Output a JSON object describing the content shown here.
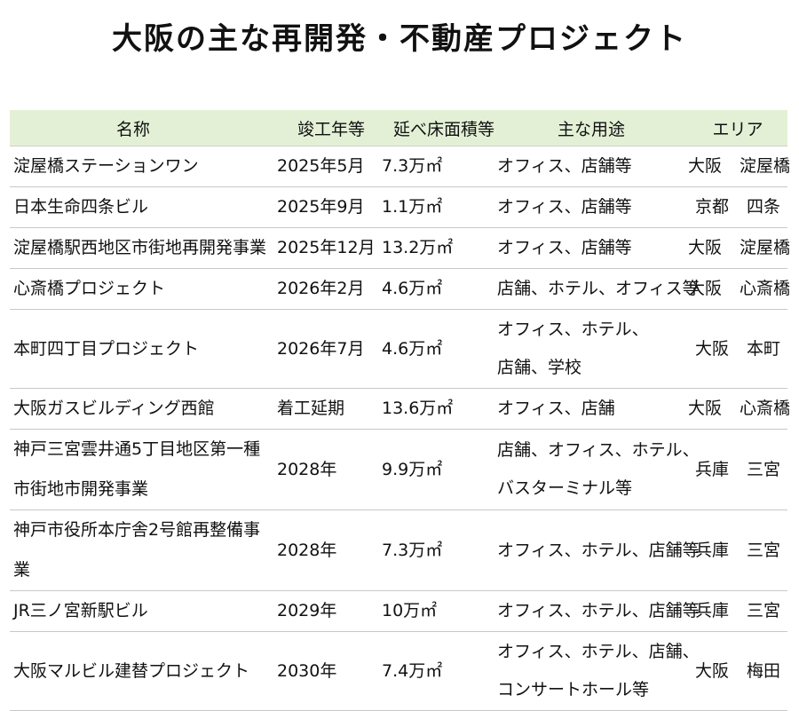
{
  "title": "大阪の主な再開発・不動産プロジェクト",
  "table": {
    "headers": [
      "名称",
      "竣工年等",
      "延べ床面積等",
      "主な用途",
      "エリア"
    ],
    "rows": [
      {
        "name": "淀屋橋ステーションワン",
        "year": "2025年5月",
        "floor_area": "7.3万㎡",
        "uses": [
          "オフィス、店舗等"
        ],
        "city": "大阪",
        "district": "淀屋橋"
      },
      {
        "name": "日本生命四条ビル",
        "year": "2025年9月",
        "floor_area": "1.1万㎡",
        "uses": [
          "オフィス、店舗等"
        ],
        "city": "京都",
        "district": "四条"
      },
      {
        "name": "淀屋橋駅西地区市街地再開発事業",
        "year": "2025年12月",
        "floor_area": "13.2万㎡",
        "uses": [
          "オフィス、店舗等"
        ],
        "city": "大阪",
        "district": "淀屋橋"
      },
      {
        "name": "心斎橋プロジェクト",
        "year": "2026年2月",
        "floor_area": "4.6万㎡",
        "uses": [
          "店舗、ホテル、オフィス等"
        ],
        "city": "大阪",
        "district": "心斎橋"
      },
      {
        "name": "本町四丁目プロジェクト",
        "year": "2026年7月",
        "floor_area": "4.6万㎡",
        "uses": [
          "オフィス、ホテル、",
          "店舗、学校"
        ],
        "city": "大阪",
        "district": "本町"
      },
      {
        "name": "大阪ガスビルディング西館",
        "year": "着工延期",
        "floor_area": "13.6万㎡",
        "uses": [
          "オフィス、店舗"
        ],
        "city": "大阪",
        "district": "心斎橋"
      },
      {
        "name": "神戸三宮雲井通5丁目地区第一種市街地市開発事業",
        "year": "2028年",
        "floor_area": "9.9万㎡",
        "uses": [
          "店舗、オフィス、ホテル、",
          "バスターミナル等"
        ],
        "city": "兵庫",
        "district": "三宮"
      },
      {
        "name": "神戸市役所本庁舎2号館再整備事業",
        "year": "2028年",
        "floor_area": "7.3万㎡",
        "uses": [
          "オフィス、ホテル、店舗等"
        ],
        "city": "兵庫",
        "district": "三宮"
      },
      {
        "name": "JR三ノ宮新駅ビル",
        "year": "2029年",
        "floor_area": "10万㎡",
        "uses": [
          "オフィス、ホテル、店舗等"
        ],
        "city": "兵庫",
        "district": "三宮"
      },
      {
        "name": "大阪マルビル建替プロジェクト",
        "year": "2030年",
        "floor_area": "7.4万㎡",
        "uses": [
          "オフィス、ホテル、店舗、",
          "コンサートホール等"
        ],
        "city": "大阪",
        "district": "梅田"
      }
    ]
  },
  "colors": {
    "header_bg": "#e3f0d6",
    "row_border": "#c8c8c8",
    "text": "#111111"
  }
}
